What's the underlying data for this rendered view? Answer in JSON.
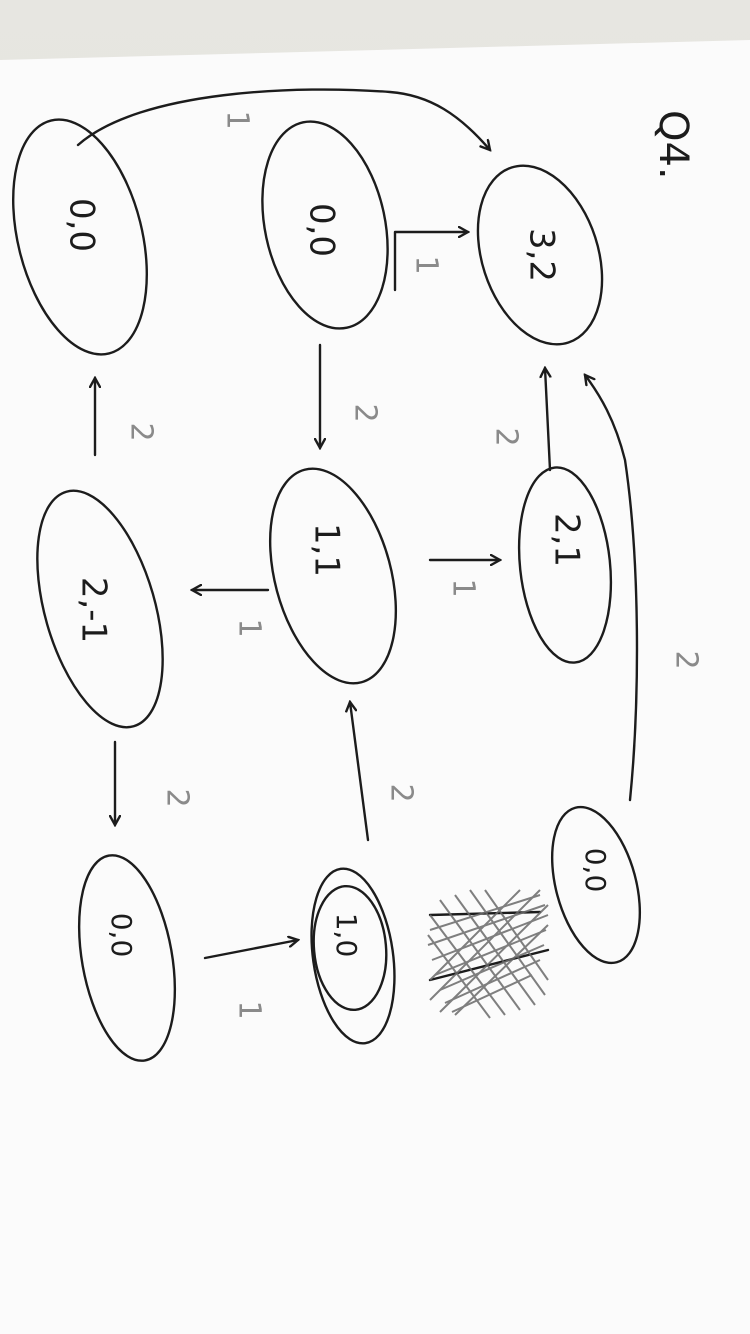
{
  "question_label": "Q4.",
  "nodes": [
    {
      "id": "a",
      "label": "3,2"
    },
    {
      "id": "b",
      "label": "0,0"
    },
    {
      "id": "c",
      "label": "0,0"
    },
    {
      "id": "d",
      "label": "2,1"
    },
    {
      "id": "e",
      "label": "1,1"
    },
    {
      "id": "f",
      "label": "2,-1"
    },
    {
      "id": "g",
      "label": "0,0"
    },
    {
      "id": "h",
      "label": "1,0"
    },
    {
      "id": "i",
      "label": "0,0"
    }
  ],
  "edges": [
    {
      "id": "c-a",
      "label": "1"
    },
    {
      "id": "b-a",
      "label": "1"
    },
    {
      "id": "b-e",
      "label": "2"
    },
    {
      "id": "d-a",
      "label": "2"
    },
    {
      "id": "e-d",
      "label": "1"
    },
    {
      "id": "e-f",
      "label": "1"
    },
    {
      "id": "f-c",
      "label": "2"
    },
    {
      "id": "h-e",
      "label": "2"
    },
    {
      "id": "f-i",
      "label": "2"
    },
    {
      "id": "i-h",
      "label": "1"
    },
    {
      "id": "g-a",
      "label": "2"
    }
  ]
}
